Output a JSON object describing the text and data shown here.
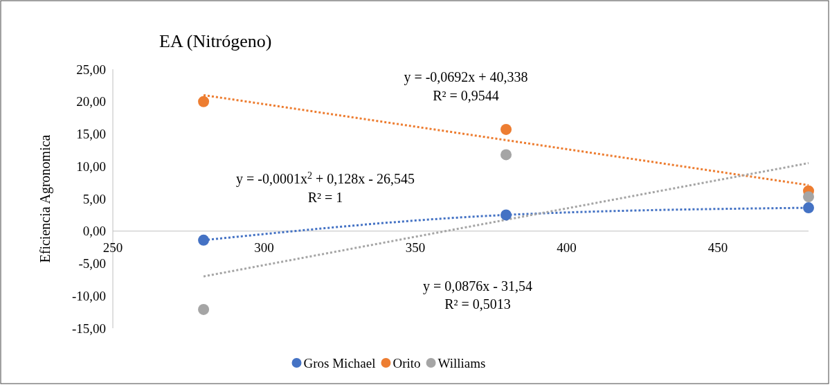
{
  "chart_data": {
    "type": "scatter",
    "title": "EA (Nitrógeno)",
    "ylabel": "Eficiencia Agronomica",
    "xlim": [
      250,
      480
    ],
    "xticks": [
      250,
      300,
      350,
      400,
      450
    ],
    "ylim": [
      -15,
      25
    ],
    "yticks": [
      {
        "value": -15,
        "label": "-15,00"
      },
      {
        "value": -10,
        "label": "-10,00"
      },
      {
        "value": -5,
        "label": "-5,00"
      },
      {
        "value": 0,
        "label": "0,00"
      },
      {
        "value": 5,
        "label": "5,00"
      },
      {
        "value": 10,
        "label": "10,00"
      },
      {
        "value": 15,
        "label": "15,00"
      },
      {
        "value": 20,
        "label": "20,00"
      },
      {
        "value": 25,
        "label": "25,00"
      }
    ],
    "grid": false,
    "legend": "bottom",
    "marker": "circle",
    "series": [
      {
        "name": "Gros Michael",
        "color": "#4472c4",
        "x": [
          280,
          380,
          480
        ],
        "values": [
          -1.4,
          2.5,
          3.6
        ]
      },
      {
        "name": "Orito",
        "color": "#ed7d31",
        "x": [
          280,
          380,
          480
        ],
        "values": [
          20.0,
          15.7,
          6.2
        ]
      },
      {
        "name": "Williams",
        "color": "#a5a5a5",
        "x": [
          280,
          380,
          480
        ],
        "values": [
          -12.1,
          11.8,
          5.3
        ]
      },
      {
        "type": "line",
        "color": "#4472c4",
        "line_style": "dotted",
        "marker": "none",
        "x": [
          280,
          380,
          480
        ],
        "values": [
          -1.4,
          2.5,
          3.6
        ]
      },
      {
        "type": "line",
        "color": "#ed7d31",
        "line_style": "dotted",
        "marker": "none",
        "x": [
          280,
          480
        ],
        "values": [
          21.0,
          7.1
        ]
      },
      {
        "type": "line",
        "color": "#a5a5a5",
        "line_style": "dotted",
        "marker": "none",
        "x": [
          280,
          480
        ],
        "values": [
          -7.0,
          10.5
        ]
      }
    ],
    "annotations": [
      "y = -0,0692x + 40,338",
      "R² = 0,9544",
      "y = -0,0001x$^{2}$ + 0,128x - 26,545",
      "R² = 1",
      "y = 0,0876x - 31,54",
      "R² = 0,5013"
    ]
  }
}
